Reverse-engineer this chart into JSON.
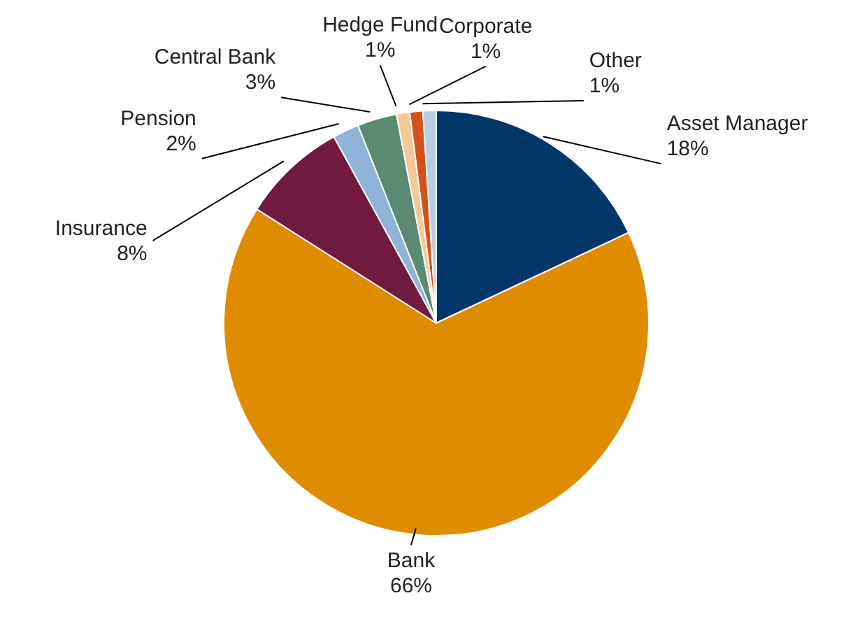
{
  "chart_data": {
    "type": "pie",
    "categories": [
      "Asset Manager",
      "Bank",
      "Insurance",
      "Pension",
      "Central Bank",
      "Hedge Fund",
      "Corporate",
      "Other"
    ],
    "values": [
      18,
      66,
      8,
      2,
      3,
      1,
      1,
      1
    ],
    "value_labels": [
      "18%",
      "66%",
      "8%",
      "2%",
      "3%",
      "1%",
      "1%",
      "1%"
    ],
    "colors": [
      "#003768",
      "#e08c00",
      "#6f1a3e",
      "#8fb3d9",
      "#5b8a72",
      "#f7c897",
      "#d3521c",
      "#b9cde5"
    ],
    "legend": false
  }
}
